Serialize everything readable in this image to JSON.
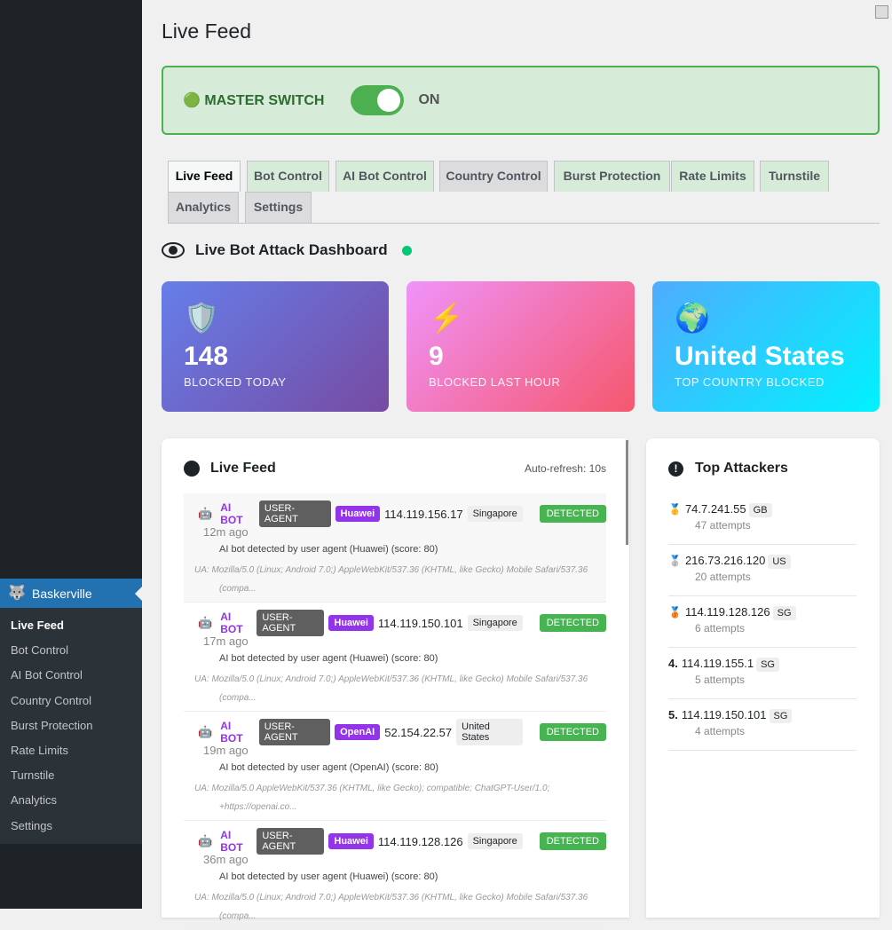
{
  "sidebar": {
    "brand": "Baskerville",
    "items": [
      "Live Feed",
      "Bot Control",
      "AI Bot Control",
      "Country Control",
      "Burst Protection",
      "Rate Limits",
      "Turnstile",
      "Analytics",
      "Settings"
    ]
  },
  "title": "Live Feed",
  "master": {
    "icon": "🟢",
    "label": "MASTER SWITCH",
    "state": "ON",
    "on": true
  },
  "tabs": [
    "Live Feed",
    "Bot Control",
    "AI Bot Control",
    "Country Control",
    "Burst Protection",
    "Rate Limits",
    "Turnstile",
    "Analytics",
    "Settings"
  ],
  "dashboard": {
    "title": "Live Bot Attack Dashboard"
  },
  "cards": [
    {
      "icon": "🛡️",
      "value": "148",
      "label": "BLOCKED TODAY"
    },
    {
      "icon": "⚡",
      "value": "9",
      "label": "BLOCKED LAST HOUR"
    },
    {
      "icon": "🌍",
      "value": "United States",
      "label": "TOP COUNTRY BLOCKED"
    }
  ],
  "feed": {
    "title": "Live Feed",
    "auto_refresh": "Auto-refresh: 10s",
    "items": [
      {
        "type": "AI BOT",
        "method": "USER-AGENT",
        "vendor": "Huawei",
        "ip": "114.119.156.17",
        "country": "Singapore",
        "status": "DETECTED",
        "ago": "12m ago",
        "reason": "AI bot detected by user agent (Huawei) (score: 80)",
        "ua": "UA: Mozilla/5.0 (Linux; Android 7.0;) AppleWebKit/537.36 (KHTML, like Gecko) Mobile Safari/537.36 (compa..."
      },
      {
        "type": "AI BOT",
        "method": "USER-AGENT",
        "vendor": "Huawei",
        "ip": "114.119.150.101",
        "country": "Singapore",
        "status": "DETECTED",
        "ago": "17m ago",
        "reason": "AI bot detected by user agent (Huawei) (score: 80)",
        "ua": "UA: Mozilla/5.0 (Linux; Android 7.0;) AppleWebKit/537.36 (KHTML, like Gecko) Mobile Safari/537.36 (compa..."
      },
      {
        "type": "AI BOT",
        "method": "USER-AGENT",
        "vendor": "OpenAI",
        "ip": "52.154.22.57",
        "country": "United States",
        "status": "DETECTED",
        "ago": "19m ago",
        "reason": "AI bot detected by user agent (OpenAI) (score: 80)",
        "ua": "UA: Mozilla/5.0 AppleWebKit/537.36 (KHTML, like Gecko); compatible; ChatGPT-User/1.0; +https://openai.co..."
      },
      {
        "type": "AI BOT",
        "method": "USER-AGENT",
        "vendor": "Huawei",
        "ip": "114.119.128.126",
        "country": "Singapore",
        "status": "DETECTED",
        "ago": "36m ago",
        "reason": "AI bot detected by user agent (Huawei) (score: 80)",
        "ua": "UA: Mozilla/5.0 (Linux; Android 7.0;) AppleWebKit/537.36 (KHTML, like Gecko) Mobile Safari/537.36 (compa..."
      }
    ]
  },
  "attackers": {
    "title": "Top Attackers",
    "items": [
      {
        "rank": "🥇",
        "ip": "74.7.241.55",
        "cc": "GB",
        "attempts": "47 attempts"
      },
      {
        "rank": "🥈",
        "ip": "216.73.216.120",
        "cc": "US",
        "attempts": "20 attempts"
      },
      {
        "rank": "🥉",
        "ip": "114.119.128.126",
        "cc": "SG",
        "attempts": "6 attempts"
      },
      {
        "rank": "4.",
        "ip": "114.119.155.1",
        "cc": "SG",
        "attempts": "5 attempts"
      },
      {
        "rank": "5.",
        "ip": "114.119.150.101",
        "cc": "SG",
        "attempts": "4 attempts"
      }
    ]
  }
}
